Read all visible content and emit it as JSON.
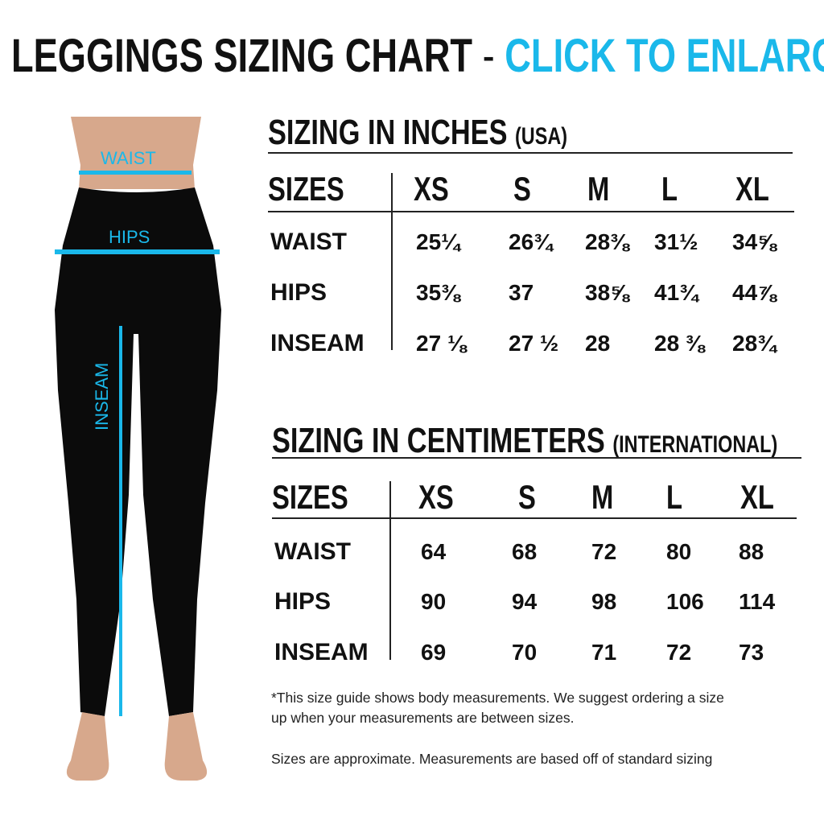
{
  "header": {
    "title": "LEGGINGS SIZING CHART",
    "separator": " - ",
    "cta": "CLICK TO ENLARGE"
  },
  "figure": {
    "waist_label": "WAIST",
    "hips_label": "HIPS",
    "inseam_label": "INSEAM",
    "accent_color": "#1ab8ea"
  },
  "inches": {
    "title": "SIZING IN INCHES",
    "subtitle": "(USA)",
    "sizes_label": "SIZES",
    "sizes": [
      "XS",
      "S",
      "M",
      "L",
      "XL"
    ],
    "rows": [
      {
        "label": "WAIST",
        "values": [
          "25¼",
          "26¾",
          "28⅜",
          "31½",
          "34⅝"
        ]
      },
      {
        "label": "HIPS",
        "values": [
          "35⅜",
          "37",
          "38⅝",
          "41¾",
          "44⅞"
        ]
      },
      {
        "label": "INSEAM",
        "values": [
          "27 ⅛",
          "27 ½",
          "28",
          "28 ⅜",
          "28¾"
        ]
      }
    ]
  },
  "cm": {
    "title": "SIZING IN CENTIMETERS",
    "subtitle": "(INTERNATIONAL)",
    "sizes_label": "SIZES",
    "sizes": [
      "XS",
      "S",
      "M",
      "L",
      "XL"
    ],
    "rows": [
      {
        "label": "WAIST",
        "values": [
          "64",
          "68",
          "72",
          "80",
          "88"
        ]
      },
      {
        "label": "HIPS",
        "values": [
          "90",
          "94",
          "98",
          "106",
          "114"
        ]
      },
      {
        "label": "INSEAM",
        "values": [
          "69",
          "70",
          "71",
          "72",
          "73"
        ]
      }
    ]
  },
  "notes": {
    "line1": "*This size guide shows body measurements. We suggest ordering a size",
    "line2": "up when your measurements are between sizes.",
    "line3": "Sizes are approximate. Measurements are based off of standard sizing"
  }
}
